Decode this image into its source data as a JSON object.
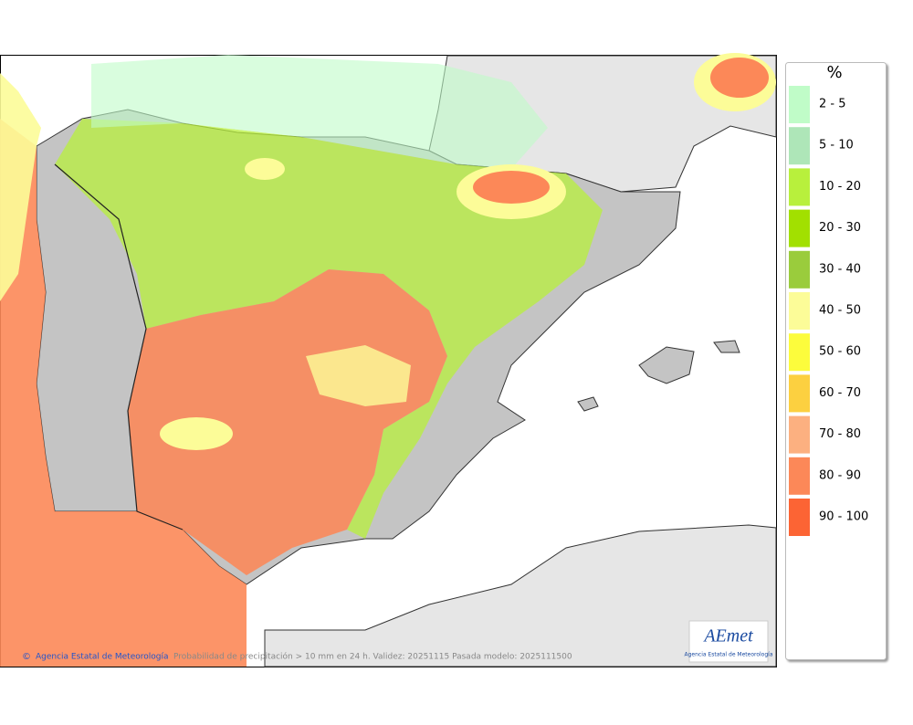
{
  "legend": {
    "title": "%",
    "items": [
      {
        "label": "2 - 5",
        "color": "#c0fcc8"
      },
      {
        "label": "5 - 10",
        "color": "#aee6b8"
      },
      {
        "label": "10 - 20",
        "color": "#b8f03c"
      },
      {
        "label": "20 - 30",
        "color": "#a2e000"
      },
      {
        "label": "30 - 40",
        "color": "#9acc3c"
      },
      {
        "label": "40 - 50",
        "color": "#fcfc98"
      },
      {
        "label": "50 - 60",
        "color": "#fcfc3c"
      },
      {
        "label": "60 - 70",
        "color": "#fcd040"
      },
      {
        "label": "70 - 80",
        "color": "#fcb080"
      },
      {
        "label": "80 - 90",
        "color": "#fc8858"
      },
      {
        "label": "90 - 100",
        "color": "#fc6434"
      }
    ]
  },
  "footer": {
    "agency": "Agencia Estatal de Meteorología",
    "caption": "Probabilidad de precipitación > 10 mm en 24 h. Validez: 20251115 Pasada modelo: 2025111500"
  },
  "logo": {
    "name": "AEmet",
    "subtitle": "Agencia Estatal de Meteorología"
  }
}
